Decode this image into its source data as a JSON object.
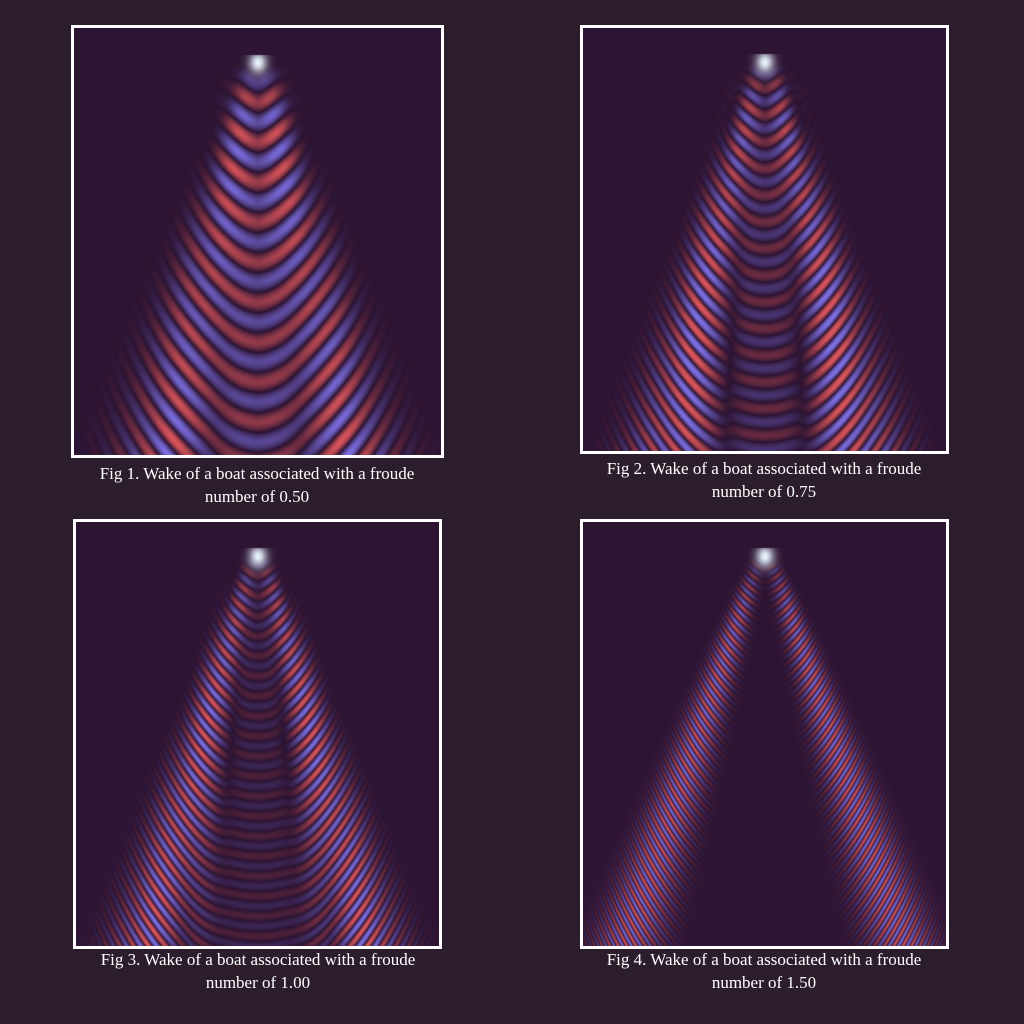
{
  "figures": [
    {
      "froude": 0.5,
      "caption_line1": "Fig 1. Wake of a boat associated with a froude",
      "caption_line2": "number of 0.50"
    },
    {
      "froude": 0.75,
      "caption_line1": "Fig 2. Wake of a boat associated with a froude",
      "caption_line2": "number of 0.75"
    },
    {
      "froude": 1.0,
      "caption_line1": "Fig 3. Wake of a boat associated with a froude",
      "caption_line2": "number of 1.00"
    },
    {
      "froude": 1.5,
      "caption_line1": "Fig 4. Wake of a boat associated with a froude",
      "caption_line2": "number of 1.50"
    }
  ],
  "colors": {
    "page_background": "#2b1d2b",
    "plot_background": "#2c1432",
    "frame_border": "#ffffff",
    "caption_text": "#ffffff",
    "crest_warm": "#d9555a",
    "crest_cool": "#7b6ee0",
    "peak_highlight": "#e8f4ff"
  }
}
